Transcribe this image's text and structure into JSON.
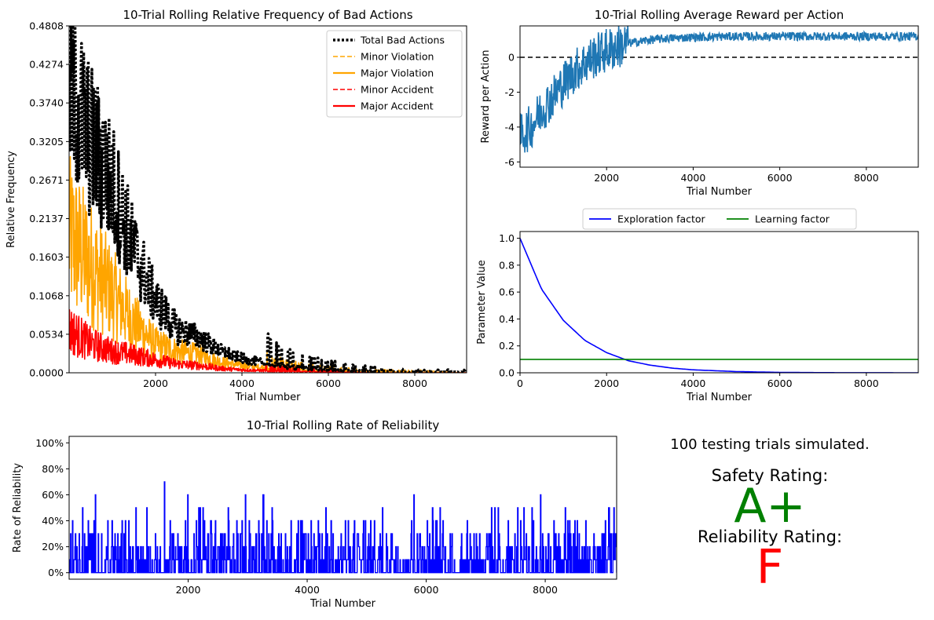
{
  "chart_data": [
    {
      "type": "line",
      "title": "10-Trial Rolling Relative Frequency of Bad Actions",
      "xlabel": "Trial Number",
      "ylabel": "Relative Frequency",
      "xlim": [
        0,
        9200
      ],
      "ylim": [
        0,
        0.4808
      ],
      "xticks": [
        2000,
        4000,
        6000,
        8000
      ],
      "yticks": [
        "0.0000",
        "0.0534",
        "0.1068",
        "0.1603",
        "0.2137",
        "0.2671",
        "0.3205",
        "0.3740",
        "0.4274",
        "0.4808"
      ],
      "legend_position": "top-right",
      "series": [
        {
          "name": "Total Bad Actions",
          "color": "#000000",
          "style": "dotted",
          "x": [
            0,
            500,
            1000,
            1500,
            2000,
            2500,
            3000,
            3500,
            4000,
            5000,
            6000,
            7000,
            8000,
            9200
          ],
          "values": [
            0.4,
            0.32,
            0.26,
            0.17,
            0.1,
            0.06,
            0.05,
            0.03,
            0.02,
            0.008,
            0.004,
            0.002,
            0.001,
            0.001
          ]
        },
        {
          "name": "Minor Violation",
          "color": "#ffa500",
          "style": "dashed",
          "x": [
            0,
            9200
          ],
          "values": [
            0,
            0
          ]
        },
        {
          "name": "Major Violation",
          "color": "#ffa500",
          "style": "solid",
          "x": [
            0,
            500,
            1000,
            1500,
            2000,
            2500,
            3000,
            3500,
            4000,
            5000,
            6000,
            7000,
            8000,
            9200
          ],
          "values": [
            0.19,
            0.15,
            0.11,
            0.07,
            0.04,
            0.03,
            0.025,
            0.015,
            0.01,
            0.004,
            0.002,
            0.001,
            0.001,
            0.0
          ]
        },
        {
          "name": "Minor Accident",
          "color": "#ff0000",
          "style": "dashed",
          "x": [
            0,
            9200
          ],
          "values": [
            0,
            0
          ]
        },
        {
          "name": "Major Accident",
          "color": "#ff0000",
          "style": "solid",
          "x": [
            0,
            500,
            1000,
            1500,
            2000,
            2500,
            3000,
            3500,
            4000,
            5000,
            6000,
            7000,
            8000,
            9200
          ],
          "values": [
            0.06,
            0.04,
            0.03,
            0.025,
            0.018,
            0.012,
            0.01,
            0.006,
            0.004,
            0.002,
            0.001,
            0.0,
            0.0,
            0.0
          ]
        }
      ]
    },
    {
      "type": "line",
      "title": "10-Trial Rolling Average Reward per Action",
      "xlabel": "Trial Number",
      "ylabel": "Reward per Action",
      "xlim": [
        0,
        9200
      ],
      "ylim": [
        -6.3,
        1.8
      ],
      "xticks": [
        2000,
        4000,
        6000,
        8000
      ],
      "yticks": [
        -6,
        -4,
        -2,
        0
      ],
      "reference_line": 0,
      "series": [
        {
          "color": "#1f77b4",
          "x": [
            0,
            250,
            500,
            750,
            1000,
            1250,
            1500,
            1750,
            2000,
            2500,
            3000,
            3500,
            4000,
            5000,
            6000,
            7000,
            8000,
            9200
          ],
          "values": [
            -4.5,
            -4.0,
            -3.0,
            -2.3,
            -1.5,
            -0.8,
            -0.3,
            0.1,
            0.4,
            0.8,
            1.0,
            1.1,
            1.15,
            1.2,
            1.2,
            1.2,
            1.2,
            1.2
          ]
        }
      ]
    },
    {
      "type": "line",
      "xlabel": "Trial Number",
      "ylabel": "Parameter Value",
      "xlim": [
        0,
        9200
      ],
      "ylim": [
        0,
        1.05
      ],
      "xticks": [
        0,
        2000,
        4000,
        6000,
        8000
      ],
      "yticks": [
        "0.0",
        "0.2",
        "0.4",
        "0.6",
        "0.8",
        "1.0"
      ],
      "legend_position": "top-center",
      "series": [
        {
          "name": "Exploration factor",
          "color": "#0000ff",
          "x": [
            0,
            500,
            1000,
            1500,
            2000,
            2500,
            3000,
            3500,
            4000,
            5000,
            6000,
            7000,
            8000,
            9200
          ],
          "values": [
            1.0,
            0.62,
            0.39,
            0.24,
            0.15,
            0.09,
            0.057,
            0.035,
            0.022,
            0.009,
            0.003,
            0.001,
            0.0005,
            0.0001
          ]
        },
        {
          "name": "Learning factor",
          "color": "#008000",
          "x": [
            0,
            9200
          ],
          "values": [
            0.1,
            0.1
          ]
        }
      ]
    },
    {
      "type": "line",
      "title": "10-Trial Rolling Rate of Reliability",
      "xlabel": "Trial Number",
      "ylabel": "Rate of Reliability",
      "xlim": [
        0,
        9200
      ],
      "ylim": [
        -5,
        105
      ],
      "xticks": [
        2000,
        4000,
        6000,
        8000
      ],
      "yticks": [
        "0%",
        "20%",
        "40%",
        "60%",
        "80%",
        "100%"
      ],
      "series": [
        {
          "color": "#0000ff",
          "x": [
            0,
            1000,
            2000,
            3000,
            4000,
            5000,
            6000,
            7000,
            8000,
            9200
          ],
          "values": [
            10,
            15,
            15,
            15,
            10,
            10,
            10,
            10,
            10,
            10
          ],
          "peaks": [
            [
              1600,
              70
            ],
            [
              440,
              60
            ],
            [
              1990,
              60
            ],
            [
              2960,
              60
            ],
            [
              3260,
              60
            ],
            [
              5790,
              60
            ],
            [
              7920,
              60
            ]
          ]
        }
      ]
    }
  ],
  "summary": {
    "trials_text": "100 testing trials simulated.",
    "safety_label": "Safety Rating:",
    "safety_grade": "A+",
    "safety_color": "#008000",
    "reliability_label": "Reliability Rating:",
    "reliability_grade": "F",
    "reliability_color": "#ff0000"
  }
}
